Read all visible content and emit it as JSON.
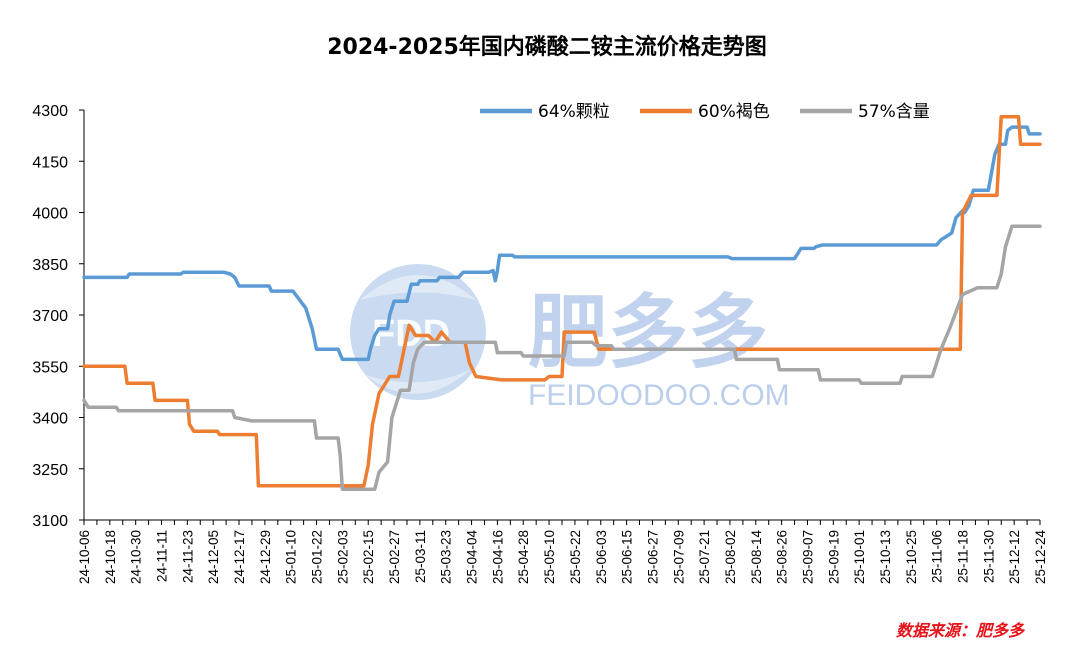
{
  "chart_data": {
    "type": "line",
    "title": "2024-2025年国内磷酸二铵主流价格走势图",
    "xlabel": "",
    "ylabel": "",
    "ylim": [
      3100,
      4300
    ],
    "yticks": [
      3100,
      3250,
      3400,
      3550,
      3700,
      3850,
      4000,
      4150,
      4300
    ],
    "xlim": [
      "2024-10-06",
      "2025-12-24"
    ],
    "xtick_labels": [
      "24-10-06",
      "24-10-18",
      "24-10-30",
      "24-11-11",
      "24-11-23",
      "24-12-05",
      "24-12-17",
      "24-12-29",
      "25-01-10",
      "25-01-22",
      "25-02-03",
      "25-02-15",
      "25-02-27",
      "25-03-11",
      "25-03-23",
      "25-04-04",
      "25-04-16",
      "25-04-28",
      "25-05-10",
      "25-05-22",
      "25-06-03",
      "25-06-15",
      "25-06-27",
      "25-07-09",
      "25-07-21",
      "25-08-02",
      "25-08-14",
      "25-08-26",
      "25-09-07",
      "25-09-19",
      "25-10-01",
      "25-10-13",
      "25-10-25",
      "25-11-06",
      "25-11-18",
      "25-11-30",
      "25-12-12",
      "25-12-24"
    ],
    "legend_position": "top-right",
    "grid": false,
    "series": [
      {
        "name": "64%颗粒",
        "color": "#5b9bd5",
        "points": [
          [
            "2024-10-06",
            3810
          ],
          [
            "2024-10-26",
            3810
          ],
          [
            "2024-10-27",
            3820
          ],
          [
            "2024-11-20",
            3820
          ],
          [
            "2024-11-21",
            3825
          ],
          [
            "2024-12-10",
            3825
          ],
          [
            "2024-12-13",
            3820
          ],
          [
            "2024-12-15",
            3810
          ],
          [
            "2024-12-17",
            3785
          ],
          [
            "2024-12-31",
            3785
          ],
          [
            "2025-01-01",
            3770
          ],
          [
            "2025-01-11",
            3770
          ],
          [
            "2025-01-17",
            3720
          ],
          [
            "2025-01-20",
            3660
          ],
          [
            "2025-01-22",
            3600
          ],
          [
            "2025-02-01",
            3600
          ],
          [
            "2025-02-03",
            3570
          ],
          [
            "2025-02-15",
            3570
          ],
          [
            "2025-02-16",
            3600
          ],
          [
            "2025-02-18",
            3640
          ],
          [
            "2025-02-20",
            3660
          ],
          [
            "2025-02-24",
            3660
          ],
          [
            "2025-02-25",
            3700
          ],
          [
            "2025-02-27",
            3740
          ],
          [
            "2025-03-05",
            3740
          ],
          [
            "2025-03-07",
            3790
          ],
          [
            "2025-03-10",
            3790
          ],
          [
            "2025-03-11",
            3800
          ],
          [
            "2025-03-19",
            3800
          ],
          [
            "2025-03-20",
            3810
          ],
          [
            "2025-03-29",
            3810
          ],
          [
            "2025-03-31",
            3825
          ],
          [
            "2025-04-12",
            3825
          ],
          [
            "2025-04-14",
            3830
          ],
          [
            "2025-04-15",
            3800
          ],
          [
            "2025-04-16",
            3830
          ],
          [
            "2025-04-17",
            3875
          ],
          [
            "2025-04-23",
            3875
          ],
          [
            "2025-04-24",
            3870
          ],
          [
            "2025-08-01",
            3870
          ],
          [
            "2025-08-03",
            3865
          ],
          [
            "2025-09-01",
            3865
          ],
          [
            "2025-09-02",
            3875
          ],
          [
            "2025-09-04",
            3895
          ],
          [
            "2025-09-10",
            3895
          ],
          [
            "2025-09-11",
            3900
          ],
          [
            "2025-09-14",
            3905
          ],
          [
            "2025-11-06",
            3905
          ],
          [
            "2025-11-08",
            3920
          ],
          [
            "2025-11-13",
            3940
          ],
          [
            "2025-11-15",
            3985
          ],
          [
            "2025-11-18",
            4005
          ],
          [
            "2025-11-19",
            4000
          ],
          [
            "2025-11-21",
            4020
          ],
          [
            "2025-11-23",
            4065
          ],
          [
            "2025-11-30",
            4065
          ],
          [
            "2025-12-01",
            4100
          ],
          [
            "2025-12-03",
            4170
          ],
          [
            "2025-12-05",
            4200
          ],
          [
            "2025-12-08",
            4200
          ],
          [
            "2025-12-09",
            4240
          ],
          [
            "2025-12-11",
            4250
          ],
          [
            "2025-12-18",
            4250
          ],
          [
            "2025-12-19",
            4230
          ],
          [
            "2025-12-24",
            4230
          ]
        ]
      },
      {
        "name": "60%褐色",
        "color": "#ed7d31",
        "points": [
          [
            "2024-10-06",
            3550
          ],
          [
            "2024-10-25",
            3550
          ],
          [
            "2024-10-26",
            3500
          ],
          [
            "2024-11-07",
            3500
          ],
          [
            "2024-11-08",
            3450
          ],
          [
            "2024-11-23",
            3450
          ],
          [
            "2024-11-24",
            3380
          ],
          [
            "2024-11-26",
            3360
          ],
          [
            "2024-12-07",
            3360
          ],
          [
            "2024-12-08",
            3350
          ],
          [
            "2024-12-25",
            3350
          ],
          [
            "2024-12-26",
            3200
          ],
          [
            "2025-02-13",
            3200
          ],
          [
            "2025-02-15",
            3260
          ],
          [
            "2025-02-17",
            3380
          ],
          [
            "2025-02-20",
            3470
          ],
          [
            "2025-02-25",
            3520
          ],
          [
            "2025-03-01",
            3520
          ],
          [
            "2025-03-03",
            3580
          ],
          [
            "2025-03-06",
            3670
          ],
          [
            "2025-03-09",
            3640
          ],
          [
            "2025-03-15",
            3640
          ],
          [
            "2025-03-18",
            3620
          ],
          [
            "2025-03-21",
            3650
          ],
          [
            "2025-03-25",
            3620
          ],
          [
            "2025-04-01",
            3620
          ],
          [
            "2025-04-03",
            3560
          ],
          [
            "2025-04-06",
            3520
          ],
          [
            "2025-04-18",
            3510
          ],
          [
            "2025-05-08",
            3510
          ],
          [
            "2025-05-10",
            3520
          ],
          [
            "2025-05-16",
            3520
          ],
          [
            "2025-05-17",
            3650
          ],
          [
            "2025-05-31",
            3650
          ],
          [
            "2025-06-02",
            3600
          ],
          [
            "2025-11-17",
            3600
          ],
          [
            "2025-11-18",
            4000
          ],
          [
            "2025-11-22",
            4050
          ],
          [
            "2025-12-04",
            4050
          ],
          [
            "2025-12-06",
            4280
          ],
          [
            "2025-12-14",
            4280
          ],
          [
            "2025-12-15",
            4200
          ],
          [
            "2025-12-24",
            4200
          ]
        ]
      },
      {
        "name": "57%含量",
        "color": "#a5a5a5",
        "points": [
          [
            "2024-10-06",
            3450
          ],
          [
            "2024-10-08",
            3430
          ],
          [
            "2024-10-21",
            3430
          ],
          [
            "2024-10-22",
            3420
          ],
          [
            "2024-12-14",
            3420
          ],
          [
            "2024-12-15",
            3400
          ],
          [
            "2024-12-23",
            3390
          ],
          [
            "2025-01-21",
            3390
          ],
          [
            "2025-01-22",
            3340
          ],
          [
            "2025-02-01",
            3340
          ],
          [
            "2025-02-02",
            3290
          ],
          [
            "2025-02-03",
            3190
          ],
          [
            "2025-02-18",
            3190
          ],
          [
            "2025-02-20",
            3240
          ],
          [
            "2025-02-24",
            3270
          ],
          [
            "2025-02-26",
            3400
          ],
          [
            "2025-03-02",
            3480
          ],
          [
            "2025-03-06",
            3480
          ],
          [
            "2025-03-08",
            3560
          ],
          [
            "2025-03-10",
            3600
          ],
          [
            "2025-03-13",
            3620
          ],
          [
            "2025-04-15",
            3620
          ],
          [
            "2025-04-16",
            3590
          ],
          [
            "2025-04-27",
            3590
          ],
          [
            "2025-04-28",
            3580
          ],
          [
            "2025-05-17",
            3580
          ],
          [
            "2025-05-18",
            3620
          ],
          [
            "2025-05-30",
            3620
          ],
          [
            "2025-06-01",
            3610
          ],
          [
            "2025-06-08",
            3610
          ],
          [
            "2025-06-09",
            3600
          ],
          [
            "2025-08-04",
            3600
          ],
          [
            "2025-08-05",
            3570
          ],
          [
            "2025-08-24",
            3570
          ],
          [
            "2025-08-25",
            3540
          ],
          [
            "2025-09-12",
            3540
          ],
          [
            "2025-09-13",
            3510
          ],
          [
            "2025-10-01",
            3510
          ],
          [
            "2025-10-02",
            3500
          ],
          [
            "2025-10-20",
            3500
          ],
          [
            "2025-10-21",
            3520
          ],
          [
            "2025-11-04",
            3520
          ],
          [
            "2025-11-05",
            3540
          ],
          [
            "2025-11-08",
            3600
          ],
          [
            "2025-11-12",
            3660
          ],
          [
            "2025-11-18",
            3760
          ],
          [
            "2025-11-25",
            3780
          ],
          [
            "2025-12-04",
            3780
          ],
          [
            "2025-12-06",
            3820
          ],
          [
            "2025-12-08",
            3900
          ],
          [
            "2025-12-11",
            3960
          ],
          [
            "2025-12-24",
            3960
          ]
        ]
      }
    ],
    "source_note": "数据来源：肥多多",
    "watermark": {
      "chinese": "肥多多",
      "english": "FEIDOODOO.COM",
      "logo_letters": "FDD"
    }
  }
}
